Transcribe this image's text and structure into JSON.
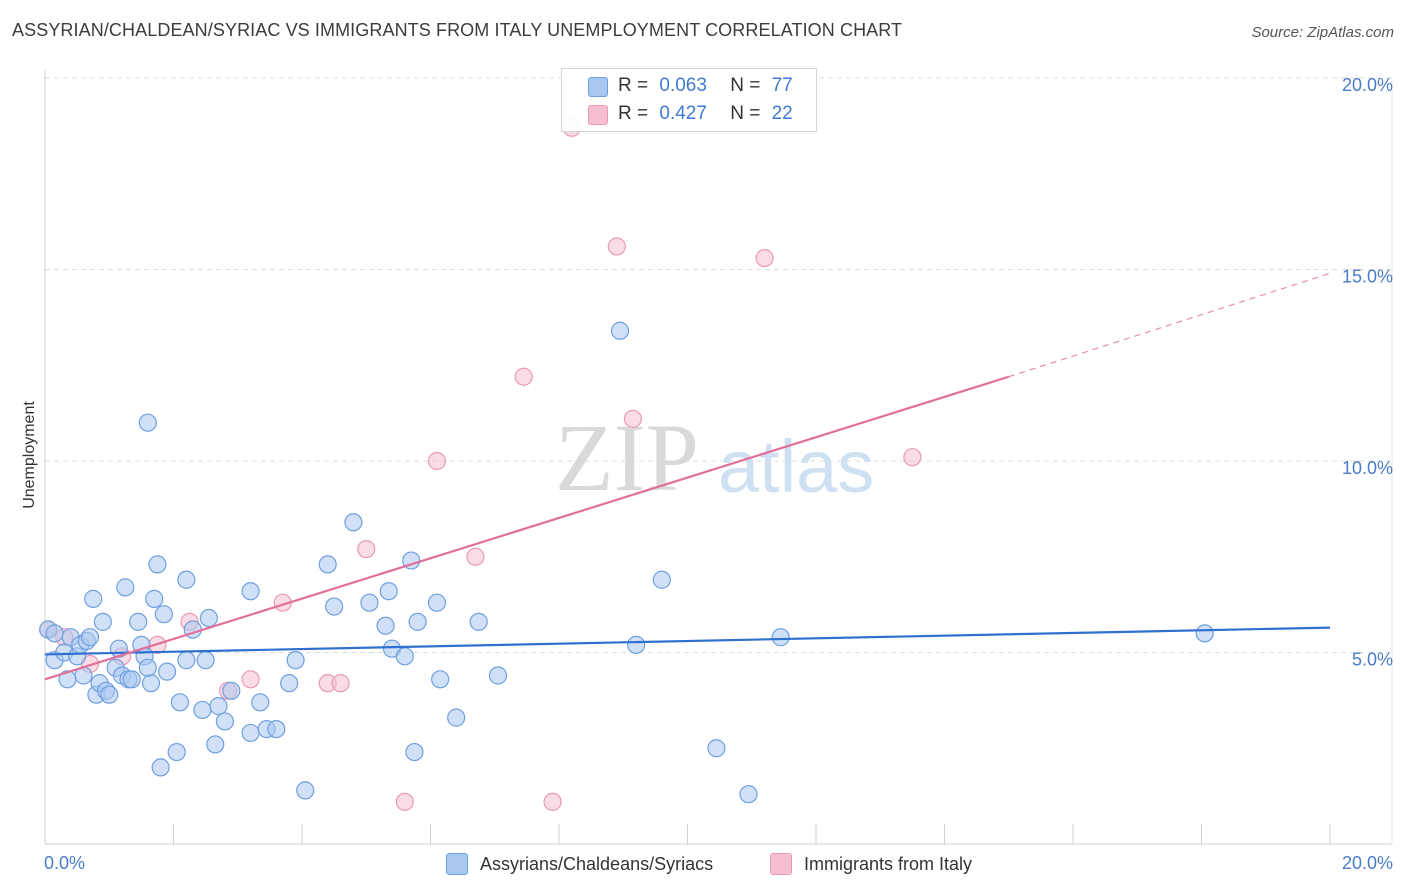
{
  "header": {
    "title": "ASSYRIAN/CHALDEAN/SYRIAC VS IMMIGRANTS FROM ITALY UNEMPLOYMENT CORRELATION CHART",
    "source": "Source: ZipAtlas.com"
  },
  "watermark": {
    "zip": "ZIP",
    "atlas": "atlas"
  },
  "legend_top": {
    "rows": [
      {
        "r_label": "R =",
        "r_value": "0.063",
        "n_label": "N =",
        "n_value": "77"
      },
      {
        "r_label": "R =",
        "r_value": "0.427",
        "n_label": "N =",
        "n_value": "22"
      }
    ]
  },
  "legend_bottom": {
    "items": [
      {
        "label": "Assyrians/Chaldeans/Syriacs"
      },
      {
        "label": "Immigrants from Italy"
      }
    ]
  },
  "colors": {
    "blue_fill": "#a9c8f0",
    "blue_stroke": "#6f9fe0",
    "blue_line": "#2f6fd0",
    "pink_fill": "#f6bfd0",
    "pink_stroke": "#e99ab4",
    "pink_line": "#e0709a",
    "grid": "#dddddd",
    "tick_text": "#4a7cc9"
  },
  "chart_data": {
    "type": "scatter",
    "title": "ASSYRIAN/CHALDEAN/SYRIAC VS IMMIGRANTS FROM ITALY UNEMPLOYMENT CORRELATION CHART",
    "xlabel": "",
    "ylabel": "Unemployment",
    "xlim": [
      0,
      20
    ],
    "ylim": [
      0,
      20.5
    ],
    "x_tick_labels": [
      "0.0%",
      "20.0%"
    ],
    "y_ticks": [
      5,
      10,
      15,
      20
    ],
    "y_tick_labels": [
      "5.0%",
      "10.0%",
      "15.0%",
      "20.0%"
    ],
    "grid": true,
    "series": [
      {
        "name": "Assyrians/Chaldeans/Syriacs",
        "R": 0.063,
        "N": 77,
        "trend": {
          "x": [
            0,
            20
          ],
          "y": [
            4.95,
            5.65
          ]
        },
        "points": [
          [
            0.05,
            5.6
          ],
          [
            0.15,
            5.5
          ],
          [
            0.15,
            4.8
          ],
          [
            0.3,
            5.0
          ],
          [
            0.35,
            4.3
          ],
          [
            0.4,
            5.4
          ],
          [
            0.5,
            4.9
          ],
          [
            0.55,
            5.2
          ],
          [
            0.6,
            4.4
          ],
          [
            0.65,
            5.3
          ],
          [
            0.7,
            5.4
          ],
          [
            0.75,
            6.4
          ],
          [
            0.8,
            3.9
          ],
          [
            0.85,
            4.2
          ],
          [
            0.9,
            5.8
          ],
          [
            0.95,
            4.0
          ],
          [
            1.0,
            3.9
          ],
          [
            1.1,
            4.6
          ],
          [
            1.15,
            5.1
          ],
          [
            1.2,
            4.4
          ],
          [
            1.25,
            6.7
          ],
          [
            1.3,
            4.3
          ],
          [
            1.35,
            4.3
          ],
          [
            1.45,
            5.8
          ],
          [
            1.5,
            5.2
          ],
          [
            1.55,
            4.9
          ],
          [
            1.6,
            11.0
          ],
          [
            1.65,
            4.2
          ],
          [
            1.7,
            6.4
          ],
          [
            1.75,
            7.3
          ],
          [
            1.8,
            2.0
          ],
          [
            1.85,
            6.0
          ],
          [
            1.9,
            4.5
          ],
          [
            2.05,
            2.4
          ],
          [
            2.1,
            3.7
          ],
          [
            2.2,
            4.8
          ],
          [
            2.2,
            6.9
          ],
          [
            2.3,
            5.6
          ],
          [
            2.45,
            3.5
          ],
          [
            2.5,
            4.8
          ],
          [
            2.55,
            5.9
          ],
          [
            2.65,
            2.6
          ],
          [
            2.7,
            3.6
          ],
          [
            2.8,
            3.2
          ],
          [
            2.9,
            4.0
          ],
          [
            3.2,
            2.9
          ],
          [
            3.2,
            6.6
          ],
          [
            3.35,
            3.7
          ],
          [
            3.45,
            3.0
          ],
          [
            3.6,
            3.0
          ],
          [
            3.8,
            4.2
          ],
          [
            3.9,
            4.8
          ],
          [
            4.05,
            1.4
          ],
          [
            4.4,
            7.3
          ],
          [
            4.5,
            6.2
          ],
          [
            4.8,
            8.4
          ],
          [
            5.05,
            6.3
          ],
          [
            5.3,
            5.7
          ],
          [
            5.35,
            6.6
          ],
          [
            5.4,
            5.1
          ],
          [
            5.6,
            4.9
          ],
          [
            5.7,
            7.4
          ],
          [
            5.75,
            2.4
          ],
          [
            5.8,
            5.8
          ],
          [
            6.1,
            6.3
          ],
          [
            6.15,
            4.3
          ],
          [
            6.4,
            3.3
          ],
          [
            6.75,
            5.8
          ],
          [
            7.05,
            4.4
          ],
          [
            8.95,
            13.4
          ],
          [
            9.2,
            5.2
          ],
          [
            9.6,
            6.9
          ],
          [
            10.45,
            2.5
          ],
          [
            10.95,
            1.3
          ],
          [
            11.45,
            5.4
          ],
          [
            18.05,
            5.5
          ],
          [
            1.6,
            4.6
          ]
        ]
      },
      {
        "name": "Immigrants from Italy",
        "R": 0.427,
        "N": 22,
        "trend": {
          "x": [
            0,
            15
          ],
          "y": [
            4.3,
            12.2
          ]
        },
        "trend_dashed": {
          "x": [
            15,
            20
          ],
          "y": [
            12.2,
            14.9
          ]
        },
        "points": [
          [
            0.05,
            5.6
          ],
          [
            0.3,
            5.4
          ],
          [
            0.7,
            4.7
          ],
          [
            1.2,
            4.9
          ],
          [
            1.75,
            5.2
          ],
          [
            2.25,
            5.8
          ],
          [
            2.85,
            4.0
          ],
          [
            3.2,
            4.3
          ],
          [
            3.7,
            6.3
          ],
          [
            4.4,
            4.2
          ],
          [
            4.6,
            4.2
          ],
          [
            5.0,
            7.7
          ],
          [
            5.6,
            1.1
          ],
          [
            6.1,
            10.0
          ],
          [
            6.7,
            7.5
          ],
          [
            7.45,
            12.2
          ],
          [
            7.9,
            1.1
          ],
          [
            8.2,
            18.7
          ],
          [
            8.9,
            15.6
          ],
          [
            9.15,
            11.1
          ],
          [
            11.2,
            15.3
          ],
          [
            13.5,
            10.1
          ]
        ]
      }
    ]
  }
}
